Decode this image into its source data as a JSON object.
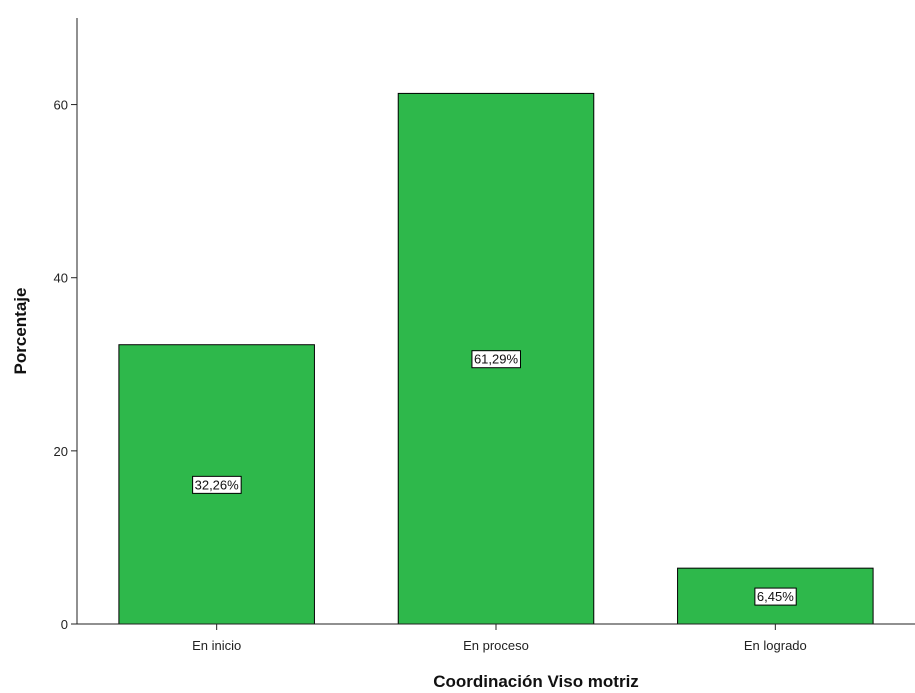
{
  "chart_data": {
    "type": "bar",
    "categories": [
      "En inicio",
      "En proceso",
      "En logrado"
    ],
    "values": [
      32.26,
      61.29,
      6.45
    ],
    "data_labels": [
      "32,26%",
      "61,29%",
      "6,45%"
    ],
    "xlabel": "Coordinación Viso motriz",
    "ylabel": "Porcentaje",
    "yticks": [
      0,
      20,
      40,
      60
    ],
    "ylim": [
      0,
      70
    ],
    "bar_color": "#2eb84b",
    "grid": false,
    "legend": "none"
  }
}
